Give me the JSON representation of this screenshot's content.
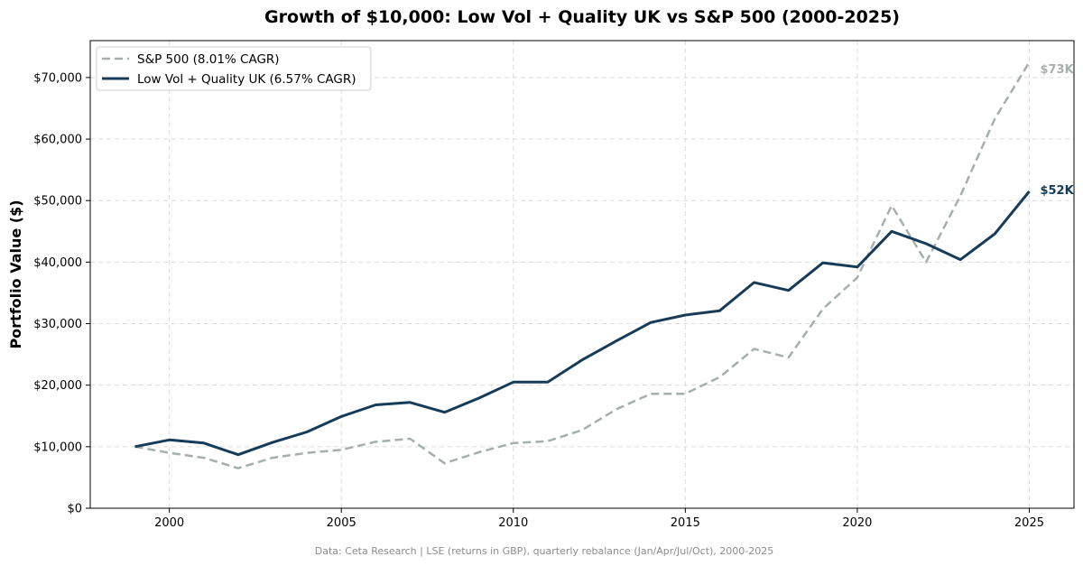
{
  "chart_data": {
    "type": "line",
    "title": "Growth of $10,000: Low Vol + Quality UK vs S&P 500 (2000-2025)",
    "xlabel": "",
    "ylabel": "Portfolio Value ($)",
    "xlim": [
      1997.7,
      2026.3
    ],
    "ylim": [
      0,
      76000
    ],
    "x_ticks": [
      2000,
      2005,
      2010,
      2015,
      2020,
      2025
    ],
    "y_ticks": [
      0,
      10000,
      20000,
      30000,
      40000,
      50000,
      60000,
      70000
    ],
    "y_tick_labels": [
      "$0",
      "$10,000",
      "$20,000",
      "$30,000",
      "$40,000",
      "$50,000",
      "$60,000",
      "$70,000"
    ],
    "grid": true,
    "legend": "top-left",
    "x": [
      1999,
      2000,
      2001,
      2002,
      2003,
      2004,
      2005,
      2006,
      2007,
      2008,
      2009,
      2010,
      2011,
      2012,
      2013,
      2014,
      2015,
      2016,
      2017,
      2018,
      2019,
      2020,
      2021,
      2022,
      2023,
      2024,
      2025
    ],
    "series": [
      {
        "name": "S&P 500 (8.01% CAGR)",
        "color": "#a5b0ae",
        "style": "dashed",
        "end_label": "$73K",
        "values": [
          10000,
          9000,
          8200,
          6500,
          8200,
          9000,
          9500,
          10800,
          11300,
          7300,
          9100,
          10600,
          10900,
          12700,
          16100,
          18600,
          18600,
          21300,
          25900,
          24500,
          32400,
          37500,
          49200,
          40000,
          50800,
          63300,
          72500
        ]
      },
      {
        "name": "Low Vol + Quality UK (6.57% CAGR)",
        "color": "#163c59",
        "style": "solid",
        "end_label": "$52K",
        "values": [
          10000,
          11100,
          10600,
          8700,
          10700,
          12400,
          14900,
          16800,
          17200,
          15600,
          17900,
          20500,
          20500,
          24100,
          27200,
          30200,
          31400,
          32100,
          36700,
          35400,
          39900,
          39200,
          45000,
          43000,
          40400,
          44600,
          51500
        ]
      }
    ]
  },
  "footer": "Data: Ceta Research | LSE (returns in GBP), quarterly rebalance (Jan/Apr/Jul/Oct), 2000-2025"
}
